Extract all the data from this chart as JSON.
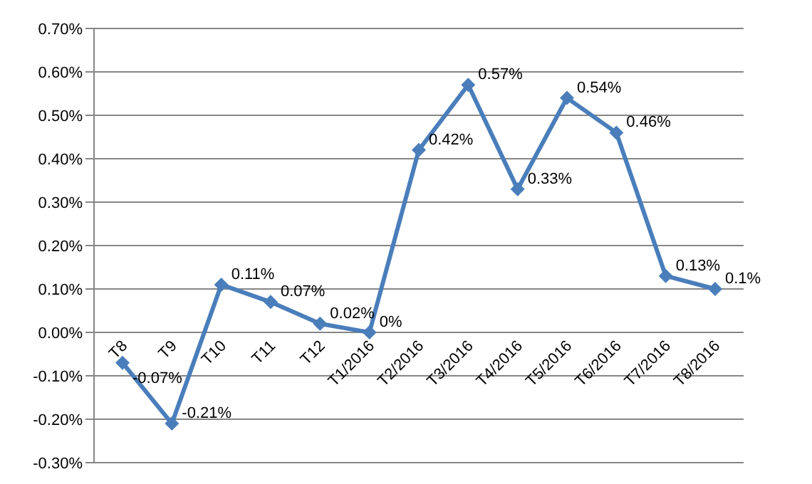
{
  "chart_data": {
    "type": "line",
    "categories": [
      "T8",
      "T9",
      "T10",
      "T11",
      "T12",
      "T1/2016",
      "T2/2016",
      "T3/2016",
      "T4/2016",
      "T5/2016",
      "T6/2016",
      "T7/2016",
      "T8/2016"
    ],
    "series": [
      {
        "color": "#4a7ebb",
        "values": [
          -0.07,
          -0.21,
          0.11,
          0.07,
          0.02,
          0,
          0.42,
          0.57,
          0.33,
          0.54,
          0.46,
          0.13,
          0.1
        ],
        "value_labels": [
          "-0.07%",
          "-0.21%",
          "0.11%",
          "0.07%",
          "0.02%",
          "0%",
          "0.42%",
          "0.57%",
          "0.33%",
          "0.54%",
          "0.46%",
          "0.13%",
          "0.1%"
        ]
      }
    ],
    "ylim": [
      -0.3,
      0.7
    ],
    "yticks": [
      {
        "value": -0.3,
        "label": "-0.30%"
      },
      {
        "value": -0.2,
        "label": "-0.20%"
      },
      {
        "value": -0.1,
        "label": "-0.10%"
      },
      {
        "value": 0,
        "label": "0.00%"
      },
      {
        "value": 0.1,
        "label": "0.10%"
      },
      {
        "value": 0.2,
        "label": "0.20%"
      },
      {
        "value": 0.3,
        "label": "0.30%"
      },
      {
        "value": 0.4,
        "label": "0.40%"
      },
      {
        "value": 0.5,
        "label": "0.50%"
      },
      {
        "value": 0.6,
        "label": "0.60%"
      },
      {
        "value": 0.7,
        "label": "0.70%"
      }
    ],
    "grid": "y",
    "marker": "diamond",
    "line_style": "solid"
  }
}
